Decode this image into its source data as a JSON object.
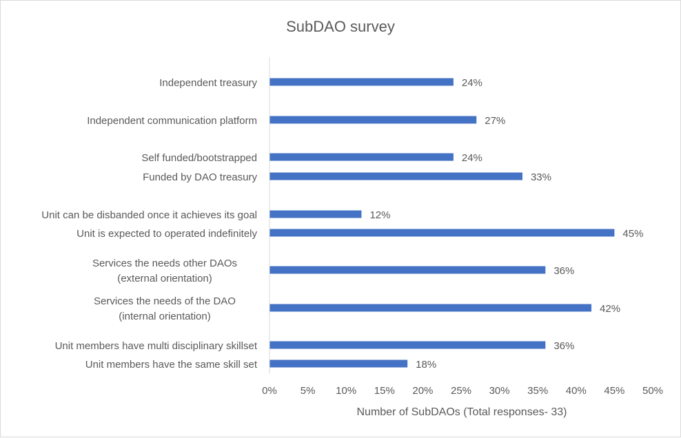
{
  "chart_data": {
    "type": "bar",
    "orientation": "horizontal",
    "title": "SubDAO survey",
    "xlabel": "Number of SubDAOs (Total responses- 33)",
    "ylabel": "",
    "xlim": [
      0,
      50
    ],
    "xticks": [
      "0%",
      "5%",
      "10%",
      "15%",
      "20%",
      "25%",
      "30%",
      "35%",
      "40%",
      "45%",
      "50%"
    ],
    "grid": false,
    "bar_color": "#4472c4",
    "categories": [
      {
        "lines": [
          "Independent treasury"
        ],
        "value": 24,
        "label": "24%"
      },
      {
        "lines": [
          "Independent communication platform"
        ],
        "value": 27,
        "label": "27%"
      },
      {
        "lines": [
          "Self funded/bootstrapped"
        ],
        "value": 24,
        "label": "24%"
      },
      {
        "lines": [
          "Funded by DAO treasury"
        ],
        "value": 33,
        "label": "33%"
      },
      {
        "lines": [
          "Unit  can be disbanded once it achieves its goal"
        ],
        "value": 12,
        "label": "12%"
      },
      {
        "lines": [
          "Unit is expected to operated indefinitely"
        ],
        "value": 45,
        "label": "45%"
      },
      {
        "lines": [
          "Services the needs other DAOs",
          "(external orientation)"
        ],
        "value": 36,
        "label": "36%"
      },
      {
        "lines": [
          "Services the needs of the DAO",
          "(internal orientation)"
        ],
        "value": 42,
        "label": "42%"
      },
      {
        "lines": [
          "Unit members have multi disciplinary skillset"
        ],
        "value": 36,
        "label": "36%"
      },
      {
        "lines": [
          "Unit members have the same skill set"
        ],
        "value": 18,
        "label": "18%"
      }
    ]
  }
}
